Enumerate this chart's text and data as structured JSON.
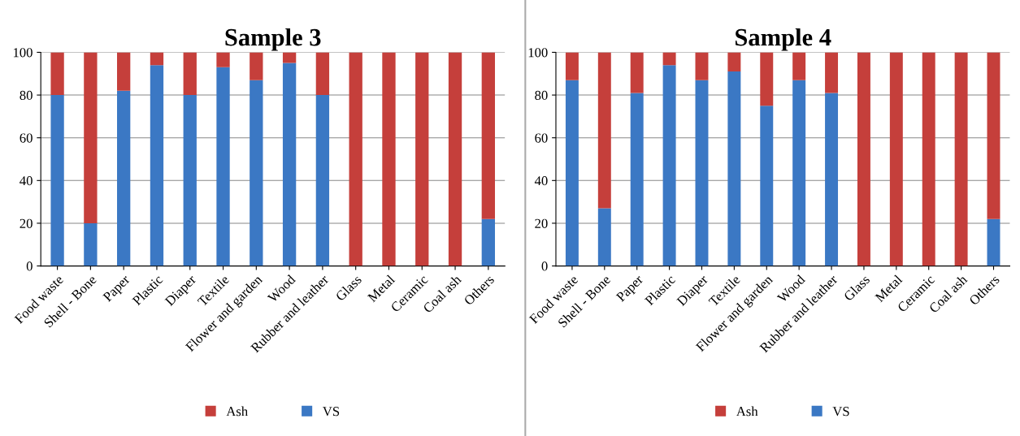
{
  "chart_data": [
    {
      "type": "bar",
      "title": "Sample 3",
      "stacked": true,
      "categories": [
        "Food waste",
        "Shell - Bone",
        "Paper",
        "Plastic",
        "Diaper",
        "Textile",
        "Flower and garden",
        "Wood",
        "Rubber and leather",
        "Glass",
        "Metal",
        "Ceramic",
        "Coal ash",
        "Others"
      ],
      "series": [
        {
          "name": "VS",
          "color": "#3b78c4",
          "values": [
            80,
            20,
            82,
            94,
            80,
            93,
            87,
            95,
            80,
            0,
            0,
            0,
            0,
            22
          ]
        },
        {
          "name": "Ash",
          "color": "#c53f3b",
          "values": [
            20,
            80,
            18,
            6,
            20,
            7,
            13,
            5,
            20,
            100,
            100,
            100,
            100,
            78
          ]
        }
      ],
      "ylim": [
        0,
        100
      ],
      "yticks": [
        0,
        20,
        40,
        60,
        80,
        100
      ],
      "grid": "y",
      "legend": "bottom"
    },
    {
      "type": "bar",
      "title": "Sample 4",
      "stacked": true,
      "categories": [
        "Food waste",
        "Shell - Bone",
        "Paper",
        "Plastic",
        "Diaper",
        "Textile",
        "Flower and garden",
        "Wood",
        "Rubber and leather",
        "Glass",
        "Metal",
        "Ceramic",
        "Coal ash",
        "Others"
      ],
      "series": [
        {
          "name": "VS",
          "color": "#3b78c4",
          "values": [
            87,
            27,
            81,
            94,
            87,
            91,
            75,
            87,
            81,
            0,
            0,
            0,
            0,
            22
          ]
        },
        {
          "name": "Ash",
          "color": "#c53f3b",
          "values": [
            13,
            73,
            19,
            6,
            13,
            9,
            25,
            13,
            19,
            100,
            100,
            100,
            100,
            78
          ]
        }
      ],
      "ylim": [
        0,
        100
      ],
      "yticks": [
        0,
        20,
        40,
        60,
        80,
        100
      ],
      "grid": "y",
      "legend": "bottom"
    }
  ]
}
